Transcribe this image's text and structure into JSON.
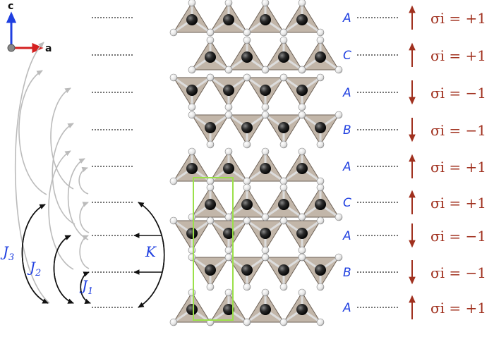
{
  "axes": {
    "c_label": "c",
    "a_label": "a"
  },
  "layers": [
    {
      "stacking": "A",
      "sigma": "σi = +1",
      "spin": "up"
    },
    {
      "stacking": "C",
      "sigma": "σi = +1",
      "spin": "up"
    },
    {
      "stacking": "A",
      "sigma": "σi = −1",
      "spin": "down"
    },
    {
      "stacking": "B",
      "sigma": "σi = −1",
      "spin": "down"
    },
    {
      "stacking": "A",
      "sigma": "σi = +1",
      "spin": "up"
    },
    {
      "stacking": "C",
      "sigma": "σi = +1",
      "spin": "up"
    },
    {
      "stacking": "A",
      "sigma": "σi = −1",
      "spin": "down"
    },
    {
      "stacking": "B",
      "sigma": "σi = −1",
      "spin": "down"
    },
    {
      "stacking": "A",
      "sigma": "σi = +1",
      "spin": "up"
    }
  ],
  "couplings": {
    "J1": {
      "symbol": "J",
      "sub": "1"
    },
    "J2": {
      "symbol": "J",
      "sub": "2"
    },
    "J3": {
      "symbol": "J",
      "sub": "3"
    },
    "K": "K"
  },
  "colors": {
    "stack_label": "#1f3fe0",
    "sigma": "#a0301e",
    "arrow_light": "#bbbbbb",
    "arrow_dark": "#111111",
    "unit_cell": "#9be04a",
    "tetra_fill": "#b7a99a"
  }
}
